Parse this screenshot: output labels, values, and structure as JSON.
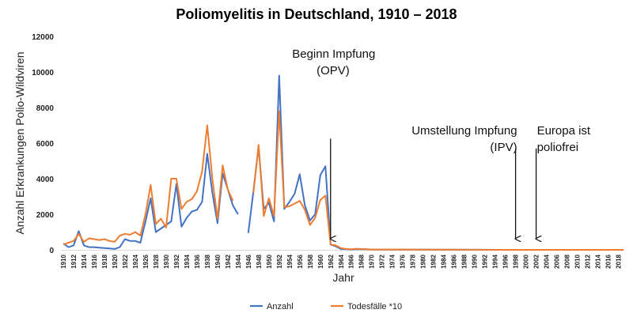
{
  "chart_data": {
    "type": "line",
    "title": "Poliomyelitis in Deutschland, 1910 – 2018",
    "xlabel": "Jahr",
    "ylabel": "Anzahl Erkrankungen Polio-Wildviren",
    "ylim": [
      0,
      12000
    ],
    "yticks": [
      0,
      2000,
      4000,
      6000,
      8000,
      10000,
      12000
    ],
    "xlim": [
      1910,
      2019
    ],
    "xtick_step": 2,
    "grid": false,
    "legend_placement": "bottom",
    "series": [
      {
        "name": "Anzahl",
        "color": "#4472c4",
        "points": [
          [
            1910,
            350
          ],
          [
            1911,
            150
          ],
          [
            1912,
            250
          ],
          [
            1913,
            1050
          ],
          [
            1914,
            250
          ],
          [
            1915,
            150
          ],
          [
            1916,
            150
          ],
          [
            1917,
            120
          ],
          [
            1918,
            100
          ],
          [
            1919,
            80
          ],
          [
            1920,
            50
          ],
          [
            1921,
            150
          ],
          [
            1922,
            600
          ],
          [
            1923,
            500
          ],
          [
            1924,
            500
          ],
          [
            1925,
            400
          ],
          [
            1926,
            1600
          ],
          [
            1927,
            2900
          ],
          [
            1928,
            1000
          ],
          [
            1929,
            1200
          ],
          [
            1930,
            1400
          ],
          [
            1931,
            1600
          ],
          [
            1932,
            3700
          ],
          [
            1933,
            1300
          ],
          [
            1934,
            1800
          ],
          [
            1935,
            2150
          ],
          [
            1936,
            2250
          ],
          [
            1937,
            2700
          ],
          [
            1938,
            5400
          ],
          [
            1939,
            3200
          ],
          [
            1940,
            1500
          ],
          [
            1941,
            4300
          ],
          [
            1942,
            3400
          ],
          [
            1943,
            2500
          ],
          [
            1944,
            2000
          ],
          null,
          [
            1946,
            950
          ],
          [
            1947,
            3300
          ],
          [
            1948,
            5800
          ],
          [
            1949,
            2300
          ],
          [
            1950,
            2650
          ],
          [
            1951,
            1600
          ],
          [
            1952,
            9800
          ],
          [
            1953,
            2300
          ],
          [
            1954,
            2700
          ],
          [
            1955,
            3150
          ],
          [
            1956,
            4250
          ],
          [
            1957,
            2500
          ],
          [
            1958,
            1650
          ],
          [
            1959,
            2000
          ],
          [
            1960,
            4200
          ],
          [
            1961,
            4700
          ],
          [
            1962,
            300
          ],
          [
            1963,
            200
          ],
          [
            1964,
            50
          ],
          [
            1965,
            40
          ],
          [
            1966,
            20
          ],
          [
            1967,
            40
          ],
          [
            1968,
            30
          ],
          [
            1969,
            30
          ],
          [
            1970,
            20
          ],
          [
            1975,
            15
          ],
          [
            1980,
            10
          ],
          [
            1990,
            5
          ],
          [
            2000,
            0
          ],
          [
            2019,
            0
          ]
        ]
      },
      {
        "name": "Todesfälle *10",
        "color": "#ed7d31",
        "points": [
          [
            1910,
            300
          ],
          [
            1911,
            400
          ],
          [
            1912,
            500
          ],
          [
            1913,
            900
          ],
          [
            1914,
            450
          ],
          [
            1915,
            650
          ],
          [
            1916,
            600
          ],
          [
            1917,
            550
          ],
          [
            1918,
            600
          ],
          [
            1919,
            500
          ],
          [
            1920,
            450
          ],
          [
            1921,
            800
          ],
          [
            1922,
            900
          ],
          [
            1923,
            850
          ],
          [
            1924,
            1000
          ],
          [
            1925,
            800
          ],
          [
            1926,
            2000
          ],
          [
            1927,
            3650
          ],
          [
            1928,
            1450
          ],
          [
            1929,
            1750
          ],
          [
            1930,
            1250
          ],
          [
            1931,
            4000
          ],
          [
            1932,
            4000
          ],
          [
            1933,
            2300
          ],
          [
            1934,
            2700
          ],
          [
            1935,
            2850
          ],
          [
            1936,
            3300
          ],
          [
            1937,
            4400
          ],
          [
            1938,
            7000
          ],
          [
            1939,
            4000
          ],
          [
            1940,
            1750
          ],
          [
            1941,
            4750
          ],
          [
            1942,
            3400
          ],
          [
            1943,
            2750
          ],
          null,
          [
            1947,
            3200
          ],
          [
            1948,
            5900
          ],
          [
            1949,
            1900
          ],
          [
            1950,
            2900
          ],
          [
            1951,
            1900
          ],
          [
            1952,
            7800
          ],
          [
            1953,
            2400
          ],
          [
            1954,
            2450
          ],
          [
            1955,
            2600
          ],
          [
            1956,
            2750
          ],
          [
            1957,
            2250
          ],
          [
            1958,
            1400
          ],
          [
            1959,
            1800
          ],
          [
            1960,
            2800
          ],
          [
            1961,
            3050
          ],
          [
            1962,
            300
          ],
          [
            1963,
            250
          ],
          [
            1964,
            100
          ],
          [
            1965,
            50
          ],
          [
            1966,
            30
          ],
          [
            1967,
            60
          ],
          [
            1968,
            50
          ],
          [
            1969,
            30
          ],
          [
            1970,
            20
          ],
          [
            1975,
            20
          ],
          [
            1980,
            10
          ],
          [
            1990,
            5
          ],
          [
            2000,
            0
          ],
          [
            2019,
            0
          ]
        ]
      }
    ],
    "annotations": [
      {
        "lines": [
          "Beginn Impfung",
          "(OPV)"
        ],
        "year": 1962,
        "align": "end",
        "arrow_from_value": 6250
      },
      {
        "lines": [
          "Umstellung Impfung",
          "(IPV)"
        ],
        "year": 1998,
        "align": "end",
        "arrow_from_value": 5700
      },
      {
        "lines": [
          "Europa ist",
          "poliofrei"
        ],
        "year": 2002,
        "align": "start",
        "arrow_from_value": 5700
      }
    ]
  }
}
